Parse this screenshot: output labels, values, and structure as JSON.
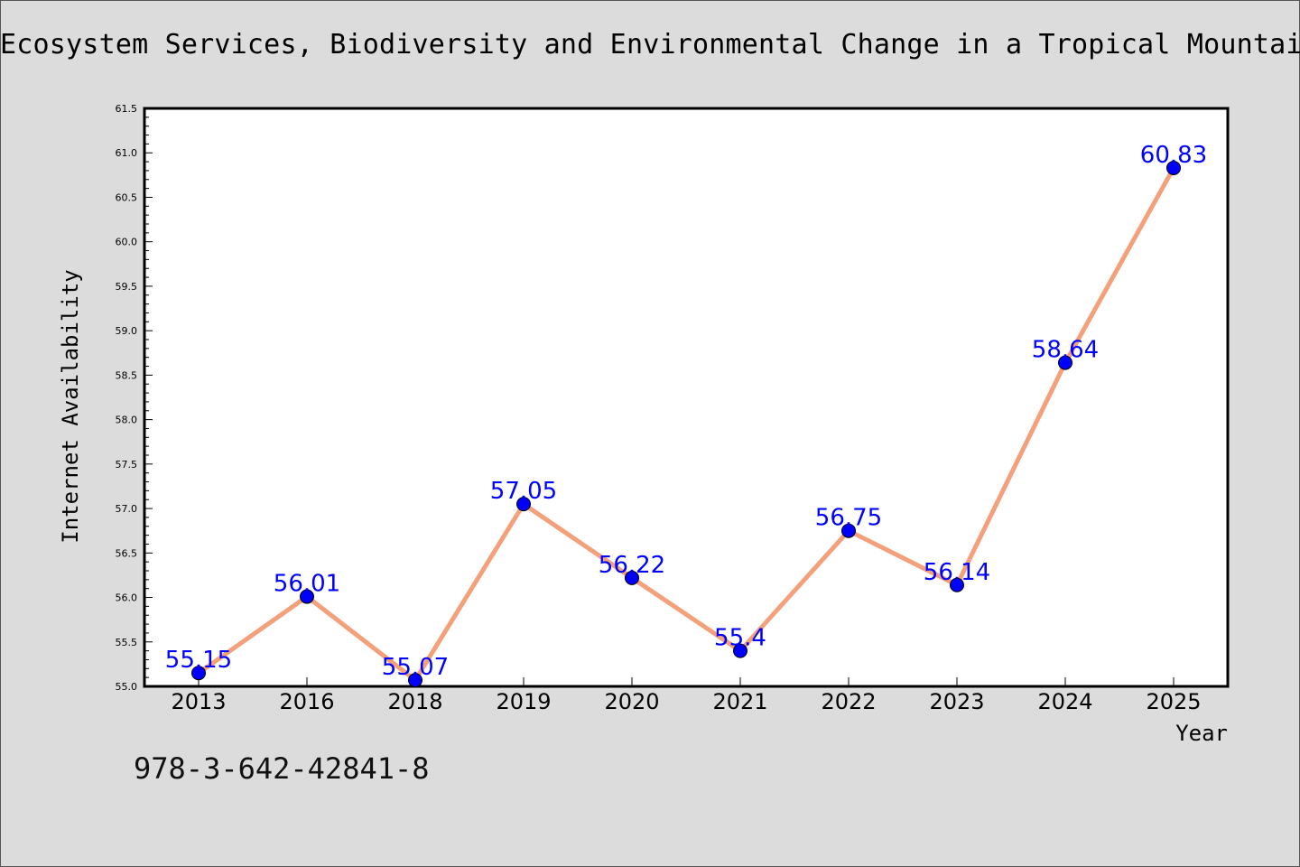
{
  "chart_data": {
    "type": "line",
    "title": "Ecosystem Services, Biodiversity and Environmental Change in a Tropical Mountain",
    "xlabel": "Year",
    "ylabel": "Internet Availability",
    "categories": [
      "2013",
      "2016",
      "2018",
      "2019",
      "2020",
      "2021",
      "2022",
      "2023",
      "2024",
      "2025"
    ],
    "series": [
      {
        "values": [
          55.15,
          56.01,
          55.07,
          57.05,
          56.22,
          55.4,
          56.75,
          56.14,
          58.64,
          60.83
        ]
      }
    ],
    "data_labels": [
      "55.15",
      "56.01",
      "55.07",
      "57.05",
      "56.22",
      "55.4",
      "56.75",
      "56.14",
      "58.64",
      "60.83"
    ],
    "ylim": [
      55.0,
      61.5
    ],
    "yticks": [
      "55.0",
      "55.5",
      "56.0",
      "56.5",
      "57.0",
      "57.5",
      "58.0",
      "58.5",
      "59.0",
      "59.5",
      "60.0",
      "60.5",
      "61.0",
      "61.5"
    ],
    "grid": false,
    "legend": false,
    "colors": {
      "line": "#f4a07a",
      "marker": "#0000ff",
      "label": "#0000ff",
      "background": "#dcdcdc",
      "plot_background": "#ffffff"
    }
  },
  "footer": {
    "isbn": "978-3-642-42841-8"
  }
}
